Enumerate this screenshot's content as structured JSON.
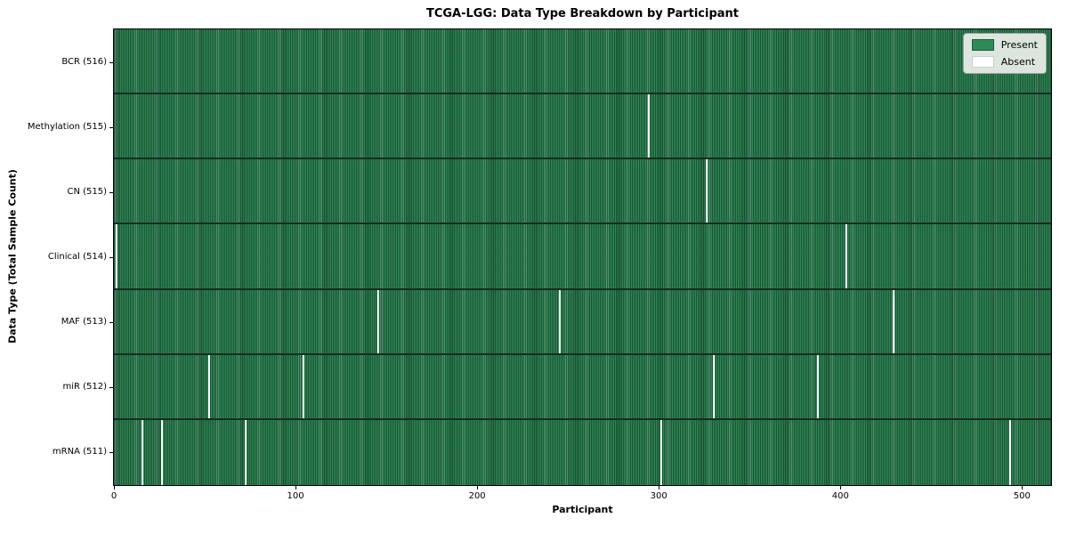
{
  "chart_data": {
    "type": "heatmap",
    "title": "TCGA-LGG: Data Type Breakdown by Participant",
    "xlabel": "Participant",
    "ylabel": "Data Type (Total Sample Count)",
    "x_ticks": [
      0,
      100,
      200,
      300,
      400,
      500
    ],
    "x_max": 516,
    "total_participants": 516,
    "colors": {
      "present": "#2e8b57",
      "absent": "#ffffff",
      "row_separator": "#152e1f"
    },
    "legend": [
      {
        "label": "Present",
        "color": "#2e8b57"
      },
      {
        "label": "Absent",
        "color": "#ffffff"
      }
    ],
    "rows": [
      {
        "label": "BCR (516)",
        "data_type": "BCR",
        "present_count": 516,
        "absent_participants": []
      },
      {
        "label": "Methylation (515)",
        "data_type": "Methylation",
        "present_count": 515,
        "absent_participants": [
          294
        ]
      },
      {
        "label": "CN (515)",
        "data_type": "CN",
        "present_count": 515,
        "absent_participants": [
          326
        ]
      },
      {
        "label": "Clinical (514)",
        "data_type": "Clinical",
        "present_count": 514,
        "absent_participants": [
          1,
          403
        ]
      },
      {
        "label": "MAF (513)",
        "data_type": "MAF",
        "present_count": 513,
        "absent_participants": [
          145,
          245,
          429
        ]
      },
      {
        "label": "miR (512)",
        "data_type": "miR",
        "present_count": 512,
        "absent_participants": [
          52,
          104,
          330,
          387
        ]
      },
      {
        "label": "mRNA (511)",
        "data_type": "mRNA",
        "present_count": 511,
        "absent_participants": [
          15,
          26,
          72,
          301,
          493
        ]
      }
    ]
  }
}
